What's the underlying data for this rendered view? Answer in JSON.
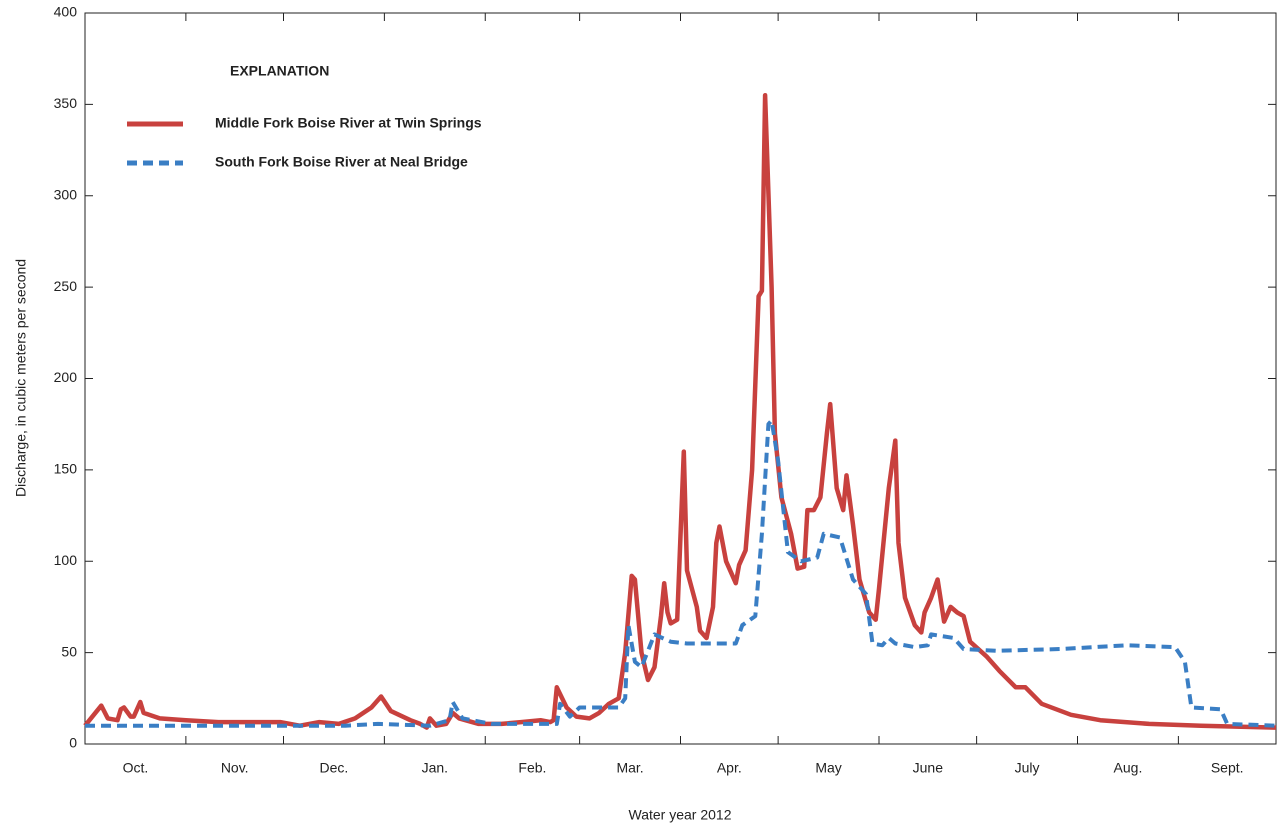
{
  "chart_data": {
    "type": "line",
    "legend_title": "EXPLANATION",
    "xlabel": "Water year 2012",
    "ylabel": "Discharge, in cubic meters per second",
    "xlim": [
      0,
      366
    ],
    "ylim": [
      0,
      400
    ],
    "yticks": [
      0,
      50,
      100,
      150,
      200,
      250,
      300,
      350,
      400
    ],
    "month_boundaries": [
      0,
      31,
      61,
      92,
      123,
      152,
      183,
      213,
      244,
      274,
      305,
      336,
      366
    ],
    "xticks": [
      {
        "value": 15.5,
        "label": "Oct."
      },
      {
        "value": 46,
        "label": "Nov."
      },
      {
        "value": 76.5,
        "label": "Dec."
      },
      {
        "value": 107.5,
        "label": "Jan."
      },
      {
        "value": 137.5,
        "label": "Feb."
      },
      {
        "value": 167.5,
        "label": "Mar."
      },
      {
        "value": 198,
        "label": "Apr."
      },
      {
        "value": 228.5,
        "label": "May"
      },
      {
        "value": 259,
        "label": "June"
      },
      {
        "value": 289.5,
        "label": "July"
      },
      {
        "value": 320.5,
        "label": "Aug."
      },
      {
        "value": 351,
        "label": "Sept."
      }
    ],
    "series": [
      {
        "name": "Middle Fork Boise River at Twin Springs",
        "color": "#c8413e",
        "dash": false,
        "x": [
          0,
          5,
          7,
          10,
          11,
          12,
          14,
          15,
          17,
          18,
          23,
          31,
          41,
          51,
          60,
          66,
          72,
          78,
          83,
          88,
          91,
          94,
          100,
          103,
          105,
          106,
          108,
          111,
          113,
          115,
          121,
          128,
          134,
          140,
          143,
          144,
          145,
          148,
          151,
          155,
          158,
          161,
          164,
          166,
          168,
          169,
          171,
          173,
          175,
          177,
          178,
          179,
          180,
          182,
          184,
          185,
          188,
          189,
          191,
          193,
          194,
          195,
          197,
          200,
          201,
          203,
          205,
          207,
          208,
          209,
          211,
          212,
          214,
          217,
          219,
          221,
          222,
          224,
          226,
          228,
          229,
          231,
          233,
          234,
          236,
          238,
          241,
          243,
          244,
          247,
          249,
          250,
          252,
          255,
          257,
          258,
          260,
          262,
          264,
          266,
          268,
          270,
          272,
          277,
          281,
          286,
          289,
          294,
          303,
          312,
          327,
          343,
          366
        ],
        "values": [
          10,
          21,
          14,
          13,
          19,
          20,
          15,
          15,
          23,
          17,
          14,
          13,
          12,
          12,
          12,
          10,
          12,
          11,
          14,
          20,
          26,
          18,
          13,
          11,
          9,
          14,
          10,
          11,
          17,
          14,
          11,
          11,
          12,
          13,
          12,
          13,
          31,
          20,
          15,
          14,
          17,
          22,
          25,
          50,
          92,
          90,
          50,
          35,
          42,
          70,
          88,
          72,
          66,
          68,
          160,
          95,
          75,
          62,
          58,
          75,
          110,
          119,
          100,
          88,
          98,
          106,
          150,
          245,
          248,
          355,
          250,
          170,
          135,
          115,
          96,
          97,
          128,
          128,
          135,
          170,
          186,
          140,
          128,
          147,
          120,
          90,
          72,
          68,
          85,
          140,
          166,
          110,
          80,
          65,
          61,
          72,
          80,
          90,
          67,
          75,
          72,
          70,
          56,
          48,
          40,
          31,
          31,
          22,
          16,
          13,
          11,
          10,
          9
        ]
      },
      {
        "name": "South Fork Boise River at Neal Bridge",
        "color": "#3a7ec4",
        "dash": true,
        "x": [
          0,
          31,
          80,
          90,
          106,
          112,
          113,
          116,
          125,
          145,
          146,
          149,
          152,
          164,
          166,
          167,
          169,
          171,
          175,
          180,
          185,
          190,
          200,
          202,
          206,
          208,
          210,
          211,
          213,
          216,
          220,
          225,
          227,
          232,
          236,
          240,
          242,
          245,
          247,
          249,
          255,
          259,
          260,
          267,
          270,
          280,
          300,
          320,
          335,
          338,
          340,
          349,
          351,
          366
        ],
        "values": [
          10,
          10,
          10,
          11,
          10,
          13,
          23,
          14,
          11,
          11,
          22,
          15,
          20,
          20,
          25,
          65,
          45,
          42,
          60,
          56,
          55,
          55,
          55,
          65,
          70,
          115,
          175,
          177,
          155,
          105,
          100,
          102,
          115,
          113,
          90,
          82,
          55,
          54,
          58,
          55,
          53,
          54,
          60,
          58,
          52,
          51,
          52,
          54,
          53,
          45,
          20,
          19,
          11,
          10
        ]
      }
    ]
  }
}
